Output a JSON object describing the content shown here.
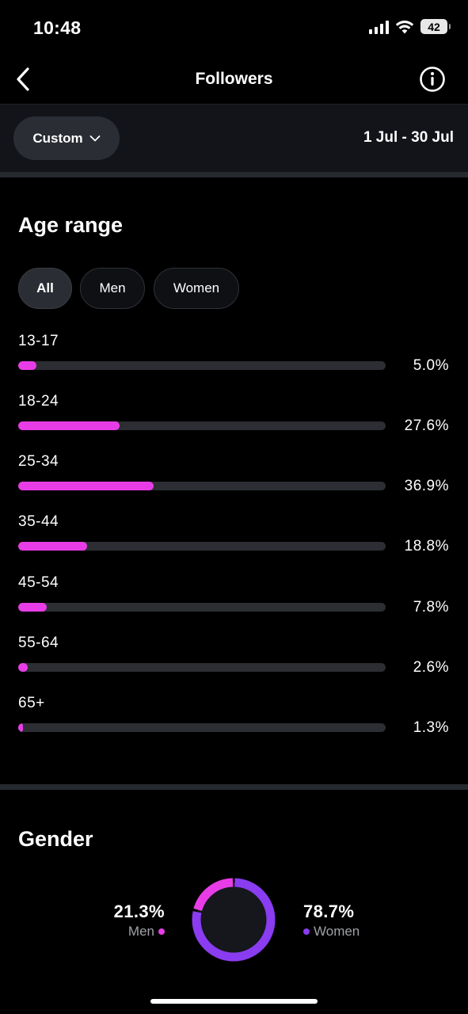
{
  "status_bar": {
    "time": "10:48",
    "battery": "42"
  },
  "nav": {
    "title": "Followers"
  },
  "filter": {
    "period_label": "Custom",
    "date_range": "1 Jul - 30 Jul"
  },
  "age": {
    "title": "Age range",
    "tabs": [
      {
        "label": "All",
        "active": true
      },
      {
        "label": "Men",
        "active": false
      },
      {
        "label": "Women",
        "active": false
      }
    ],
    "rows": [
      {
        "label": "13-17",
        "value": 5.0,
        "pct": "5.0%"
      },
      {
        "label": "18-24",
        "value": 27.6,
        "pct": "27.6%"
      },
      {
        "label": "25-34",
        "value": 36.9,
        "pct": "36.9%"
      },
      {
        "label": "35-44",
        "value": 18.8,
        "pct": "18.8%"
      },
      {
        "label": "45-54",
        "value": 7.8,
        "pct": "7.8%"
      },
      {
        "label": "55-64",
        "value": 2.6,
        "pct": "2.6%"
      },
      {
        "label": "65+",
        "value": 1.3,
        "pct": "1.3%"
      }
    ]
  },
  "gender": {
    "title": "Gender",
    "men": {
      "pct": "21.3%",
      "label": "Men",
      "value": 21.3
    },
    "women": {
      "pct": "78.7%",
      "label": "Women",
      "value": 78.7
    }
  },
  "colors": {
    "accent_pink": "#e83de6",
    "accent_purple": "#8a3cf0",
    "track": "#2c2e33"
  }
}
